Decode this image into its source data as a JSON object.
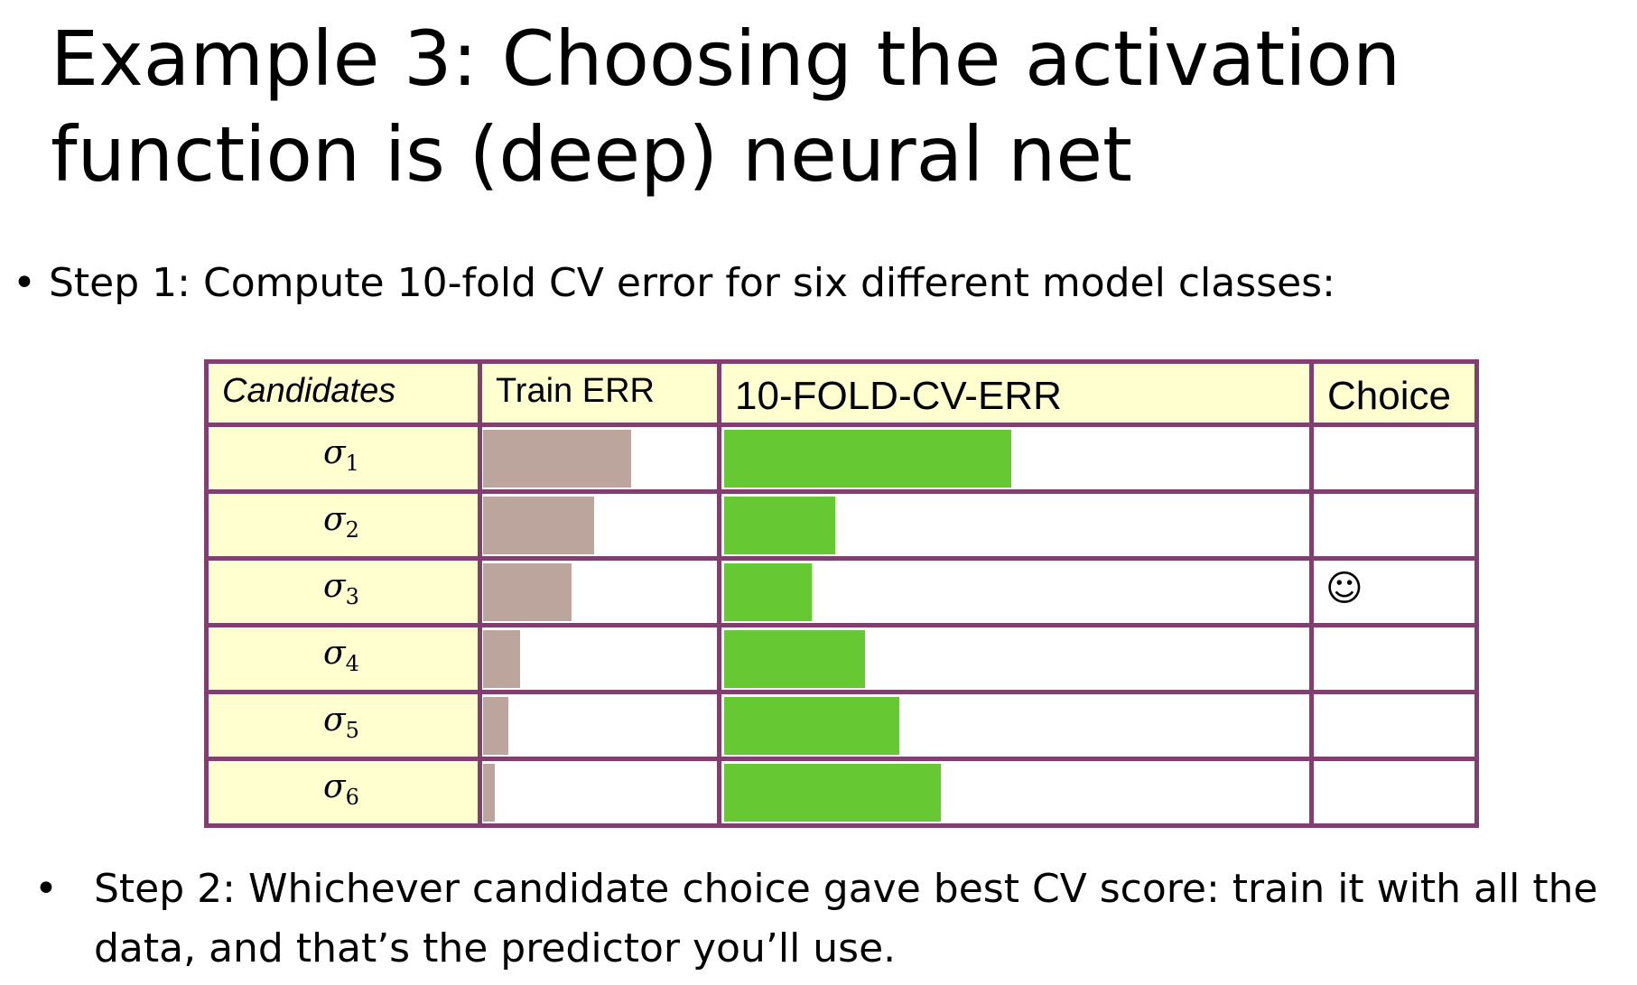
{
  "slide": {
    "title": "Example 3: Choosing the activation function is (deep) neural net",
    "bullet1_marker": "•",
    "bullet1": "Step 1: Compute 10-fold CV error for six different model classes:",
    "bullet2_marker": "•",
    "bullet2": "Step 2: Whichever candidate choice gave best CV score: train it with all the data, and that’s the predictor you’ll use."
  },
  "table": {
    "headers": {
      "candidates": "Candidates",
      "train": "Train ERR",
      "cv": "10-FOLD-CV-ERR",
      "choice": "Choice"
    },
    "rows": [
      {
        "symbol": "σ",
        "subscript": "1",
        "train_err": 0.64,
        "cv_err": 0.49,
        "choice": ""
      },
      {
        "symbol": "σ",
        "subscript": "2",
        "train_err": 0.48,
        "cv_err": 0.19,
        "choice": ""
      },
      {
        "symbol": "σ",
        "subscript": "3",
        "train_err": 0.38,
        "cv_err": 0.15,
        "choice": "☺"
      },
      {
        "symbol": "σ",
        "subscript": "4",
        "train_err": 0.16,
        "cv_err": 0.24,
        "choice": ""
      },
      {
        "symbol": "σ",
        "subscript": "5",
        "train_err": 0.11,
        "cv_err": 0.3,
        "choice": ""
      },
      {
        "symbol": "σ",
        "subscript": "6",
        "train_err": 0.05,
        "cv_err": 0.37,
        "choice": ""
      }
    ],
    "colors": {
      "header_bg": "#ffffd0",
      "candidate_bg": "#ffffd0",
      "grid": "#7f3f6f",
      "train_bar": "#bba59c",
      "cv_bar": "#66c833"
    }
  }
}
